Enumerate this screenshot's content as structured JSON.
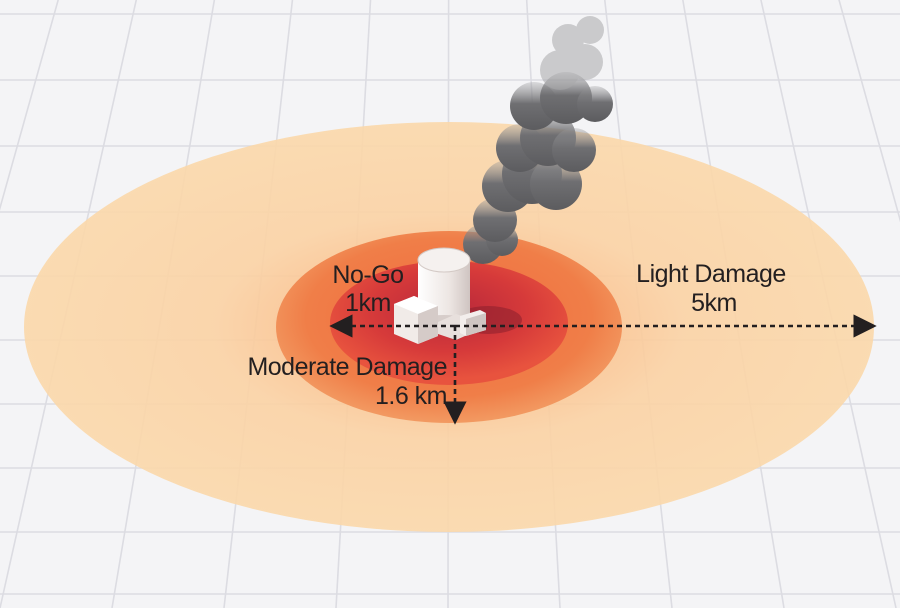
{
  "zones": [
    {
      "name": "No-Go",
      "distance": "1km",
      "distance_km": 1,
      "color": "#cf3238"
    },
    {
      "name": "Moderate Damage",
      "distance": "1.6 km",
      "distance_km": 1.6,
      "color": "#ef6f3a"
    },
    {
      "name": "Light Damage",
      "distance": "5km",
      "distance_km": 5,
      "color": "#fbd5a2"
    }
  ],
  "colors": {
    "background": "#f4f4f6",
    "grid": "#dcdce2",
    "label_text": "#231f20",
    "smoke": "#6e6e70",
    "building": "#ece6e2"
  },
  "icons": [
    "nuclear-plant-icon",
    "smoke-plume-icon"
  ]
}
